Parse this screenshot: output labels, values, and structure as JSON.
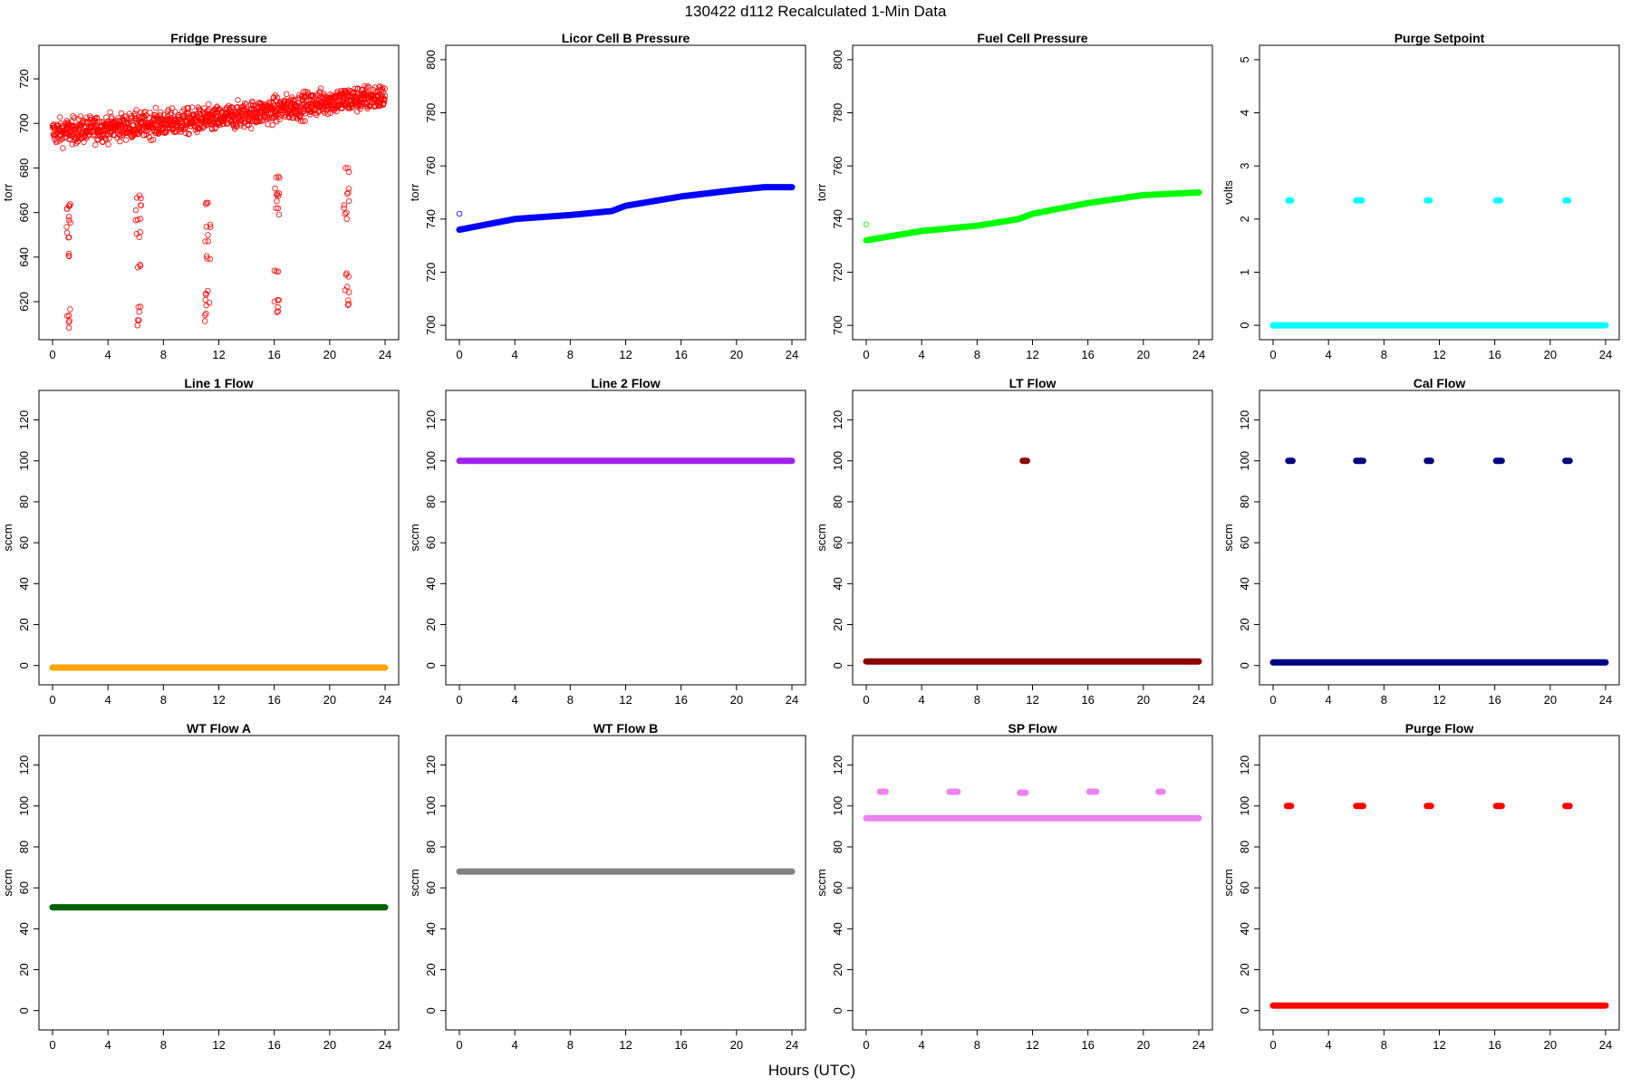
{
  "figure": {
    "title": "130422   d112   Recalculated 1-Min Data",
    "xlabel": "Hours (UTC)"
  },
  "chart_data": [
    {
      "type": "scatter",
      "title": "Fridge Pressure",
      "xlabel": "",
      "ylabel": "torr",
      "xlim": [
        0,
        24
      ],
      "ylim": [
        607,
        731
      ],
      "xticks": [
        0,
        4,
        8,
        12,
        16,
        20,
        24
      ],
      "yticks": [
        620,
        640,
        660,
        680,
        700,
        720
      ],
      "color": "#ff0000",
      "marker": "open-circle",
      "grid": false,
      "baseline": [
        [
          0,
          696
        ],
        [
          4,
          698
        ],
        [
          8,
          700
        ],
        [
          12,
          702
        ],
        [
          16,
          706
        ],
        [
          20,
          710
        ],
        [
          24,
          712
        ]
      ],
      "scatter_spread": 7,
      "excursions": [
        {
          "x_start": 1.0,
          "x_end": 1.3,
          "y_values": [
            610,
            615,
            642,
            650,
            655,
            660,
            664
          ]
        },
        {
          "x_start": 6.0,
          "x_end": 6.4,
          "y_values": [
            611,
            616,
            636,
            650,
            656,
            662,
            666
          ]
        },
        {
          "x_start": 11.0,
          "x_end": 11.4,
          "y_values": [
            613,
            620,
            625,
            640,
            648,
            655,
            663
          ]
        },
        {
          "x_start": 16.0,
          "x_end": 16.4,
          "y_values": [
            616,
            622,
            635,
            660,
            666,
            670,
            676
          ]
        },
        {
          "x_start": 21.0,
          "x_end": 21.4,
          "y_values": [
            620,
            626,
            633,
            658,
            664,
            670,
            679
          ]
        }
      ]
    },
    {
      "type": "scatter",
      "title": "Licor Cell B Pressure",
      "xlabel": "",
      "ylabel": "torr",
      "xlim": [
        0,
        24
      ],
      "ylim": [
        698,
        802
      ],
      "xticks": [
        0,
        4,
        8,
        12,
        16,
        20,
        24
      ],
      "yticks": [
        700,
        720,
        740,
        760,
        780,
        800
      ],
      "color": "#0000ff",
      "marker": "filled-band",
      "grid": false,
      "line": [
        [
          0,
          736
        ],
        [
          2,
          738
        ],
        [
          4,
          740
        ],
        [
          8,
          741.5
        ],
        [
          11,
          743
        ],
        [
          12,
          745
        ],
        [
          16,
          748.5
        ],
        [
          20,
          751
        ],
        [
          22,
          752
        ],
        [
          24,
          752
        ]
      ],
      "outliers": [
        [
          0,
          742
        ]
      ]
    },
    {
      "type": "scatter",
      "title": "Fuel Cell Pressure",
      "xlabel": "",
      "ylabel": "torr",
      "xlim": [
        0,
        24
      ],
      "ylim": [
        698,
        802
      ],
      "xticks": [
        0,
        4,
        8,
        12,
        16,
        20,
        24
      ],
      "yticks": [
        700,
        720,
        740,
        760,
        780,
        800
      ],
      "color": "#00ff00",
      "marker": "filled-band",
      "grid": false,
      "line": [
        [
          0,
          732
        ],
        [
          4,
          735.5
        ],
        [
          8,
          737.5
        ],
        [
          11,
          740
        ],
        [
          12,
          742
        ],
        [
          16,
          746
        ],
        [
          20,
          749
        ],
        [
          24,
          750
        ]
      ],
      "outliers": [
        [
          0,
          738
        ]
      ]
    },
    {
      "type": "scatter",
      "title": "Purge Setpoint",
      "xlabel": "",
      "ylabel": "volts",
      "xlim": [
        0,
        24
      ],
      "ylim": [
        -0.1,
        5.1
      ],
      "xticks": [
        0,
        4,
        8,
        12,
        16,
        20,
        24
      ],
      "yticks": [
        0,
        1,
        2,
        3,
        4,
        5
      ],
      "color": "#00ffff",
      "marker": "filled-band",
      "grid": false,
      "line": [
        [
          0,
          0
        ],
        [
          24,
          0
        ]
      ],
      "clusters": [
        {
          "x_start": 1.1,
          "x_end": 1.3,
          "y": 2.35
        },
        {
          "x_start": 6.0,
          "x_end": 6.4,
          "y": 2.35
        },
        {
          "x_start": 11.1,
          "x_end": 11.3,
          "y": 2.35
        },
        {
          "x_start": 16.1,
          "x_end": 16.4,
          "y": 2.35
        },
        {
          "x_start": 21.1,
          "x_end": 21.3,
          "y": 2.35
        }
      ]
    },
    {
      "type": "scatter",
      "title": "Line 1 Flow",
      "xlabel": "",
      "ylabel": "sccm",
      "xlim": [
        0,
        24
      ],
      "ylim": [
        -5,
        130
      ],
      "xticks": [
        0,
        4,
        8,
        12,
        16,
        20,
        24
      ],
      "yticks": [
        0,
        20,
        40,
        60,
        80,
        100,
        120
      ],
      "color": "#ffa500",
      "marker": "filled-band",
      "grid": false,
      "line": [
        [
          0,
          -1
        ],
        [
          24,
          -1
        ]
      ]
    },
    {
      "type": "scatter",
      "title": "Line 2 Flow",
      "xlabel": "",
      "ylabel": "sccm",
      "xlim": [
        0,
        24
      ],
      "ylim": [
        -5,
        130
      ],
      "xticks": [
        0,
        4,
        8,
        12,
        16,
        20,
        24
      ],
      "yticks": [
        0,
        20,
        40,
        60,
        80,
        100,
        120
      ],
      "color": "#a020f0",
      "marker": "filled-band",
      "grid": false,
      "line": [
        [
          0,
          100
        ],
        [
          24,
          100
        ]
      ]
    },
    {
      "type": "scatter",
      "title": "LT Flow",
      "xlabel": "",
      "ylabel": "sccm",
      "xlim": [
        0,
        24
      ],
      "ylim": [
        -5,
        130
      ],
      "xticks": [
        0,
        4,
        8,
        12,
        16,
        20,
        24
      ],
      "yticks": [
        0,
        20,
        40,
        60,
        80,
        100,
        120
      ],
      "color": "#8b0000",
      "marker": "filled-band",
      "grid": false,
      "line": [
        [
          0,
          2
        ],
        [
          24,
          2
        ]
      ],
      "clusters": [
        {
          "x_start": 11.3,
          "x_end": 11.6,
          "y": 100
        }
      ]
    },
    {
      "type": "scatter",
      "title": "Cal Flow",
      "xlabel": "",
      "ylabel": "sccm",
      "xlim": [
        0,
        24
      ],
      "ylim": [
        -5,
        130
      ],
      "xticks": [
        0,
        4,
        8,
        12,
        16,
        20,
        24
      ],
      "yticks": [
        0,
        20,
        40,
        60,
        80,
        100,
        120
      ],
      "color": "#000080",
      "marker": "filled-band",
      "grid": false,
      "line": [
        [
          0,
          1.5
        ],
        [
          24,
          1.5
        ]
      ],
      "clusters": [
        {
          "x_start": 1.1,
          "x_end": 1.4,
          "y": 100
        },
        {
          "x_start": 6.0,
          "x_end": 6.5,
          "y": 100
        },
        {
          "x_start": 11.1,
          "x_end": 11.4,
          "y": 100
        },
        {
          "x_start": 16.1,
          "x_end": 16.5,
          "y": 100
        },
        {
          "x_start": 21.1,
          "x_end": 21.4,
          "y": 100
        }
      ]
    },
    {
      "type": "scatter",
      "title": "WT Flow A",
      "xlabel": "",
      "ylabel": "sccm",
      "xlim": [
        0,
        24
      ],
      "ylim": [
        -5,
        130
      ],
      "xticks": [
        0,
        4,
        8,
        12,
        16,
        20,
        24
      ],
      "yticks": [
        0,
        20,
        40,
        60,
        80,
        100,
        120
      ],
      "color": "#006400",
      "marker": "filled-band",
      "grid": false,
      "line": [
        [
          0,
          50.5
        ],
        [
          24,
          50.5
        ]
      ]
    },
    {
      "type": "scatter",
      "title": "WT Flow B",
      "xlabel": "",
      "ylabel": "sccm",
      "xlim": [
        0,
        24
      ],
      "ylim": [
        -5,
        130
      ],
      "xticks": [
        0,
        4,
        8,
        12,
        16,
        20,
        24
      ],
      "yticks": [
        0,
        20,
        40,
        60,
        80,
        100,
        120
      ],
      "color": "#808080",
      "marker": "filled-band",
      "grid": false,
      "line": [
        [
          0,
          68
        ],
        [
          24,
          68
        ]
      ]
    },
    {
      "type": "scatter",
      "title": "SP Flow",
      "xlabel": "",
      "ylabel": "sccm",
      "xlim": [
        0,
        24
      ],
      "ylim": [
        -5,
        130
      ],
      "xticks": [
        0,
        4,
        8,
        12,
        16,
        20,
        24
      ],
      "yticks": [
        0,
        20,
        40,
        60,
        80,
        100,
        120
      ],
      "color": "#ee82ee",
      "marker": "filled-band",
      "grid": false,
      "line": [
        [
          0,
          94
        ],
        [
          24,
          94
        ]
      ],
      "clusters": [
        {
          "x_start": 1.0,
          "x_end": 1.4,
          "y": 107
        },
        {
          "x_start": 6.0,
          "x_end": 6.6,
          "y": 107
        },
        {
          "x_start": 11.1,
          "x_end": 11.5,
          "y": 106.5
        },
        {
          "x_start": 16.1,
          "x_end": 16.6,
          "y": 107
        },
        {
          "x_start": 21.1,
          "x_end": 21.4,
          "y": 107
        }
      ]
    },
    {
      "type": "scatter",
      "title": "Purge Flow",
      "xlabel": "",
      "ylabel": "sccm",
      "xlim": [
        0,
        24
      ],
      "ylim": [
        -5,
        130
      ],
      "xticks": [
        0,
        4,
        8,
        12,
        16,
        20,
        24
      ],
      "yticks": [
        0,
        20,
        40,
        60,
        80,
        100,
        120
      ],
      "color": "#ff0000",
      "marker": "filled-band",
      "grid": false,
      "line": [
        [
          0,
          2.5
        ],
        [
          24,
          2.5
        ]
      ],
      "clusters": [
        {
          "x_start": 1.0,
          "x_end": 1.3,
          "y": 100
        },
        {
          "x_start": 6.0,
          "x_end": 6.5,
          "y": 100
        },
        {
          "x_start": 11.1,
          "x_end": 11.4,
          "y": 100
        },
        {
          "x_start": 16.1,
          "x_end": 16.5,
          "y": 100
        },
        {
          "x_start": 21.1,
          "x_end": 21.4,
          "y": 100
        }
      ]
    }
  ]
}
